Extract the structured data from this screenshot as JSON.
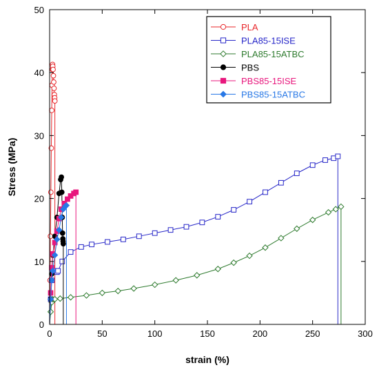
{
  "chart_data": {
    "type": "line",
    "title": "",
    "xlabel": "strain (%)",
    "ylabel": "Stress (MPa)",
    "xlim": [
      0,
      300
    ],
    "ylim": [
      0,
      50
    ],
    "xticks": [
      0,
      50,
      100,
      150,
      200,
      250,
      300
    ],
    "yticks": [
      0,
      10,
      20,
      30,
      40,
      50
    ],
    "grid": false,
    "legend_position": "top-right",
    "series": [
      {
        "name": "PLA",
        "color": "#e8262a",
        "marker": "circle-open",
        "points": [
          [
            0,
            0
          ],
          [
            0.4,
            7
          ],
          [
            0.8,
            14
          ],
          [
            1.2,
            21
          ],
          [
            1.6,
            28
          ],
          [
            2.0,
            34
          ],
          [
            2.3,
            38
          ],
          [
            2.6,
            40.5
          ],
          [
            2.8,
            41.3
          ],
          [
            3.0,
            41.0
          ],
          [
            3.3,
            40.5
          ],
          [
            3.6,
            39.5
          ],
          [
            3.9,
            38.5
          ],
          [
            4.2,
            37.5
          ],
          [
            4.5,
            36.5
          ],
          [
            4.8,
            36.0
          ],
          [
            5.0,
            35.5
          ]
        ],
        "drop_to": 5.0
      },
      {
        "name": "PLA85-15ISE",
        "color": "#2626c8",
        "marker": "square-open",
        "points": [
          [
            0,
            0
          ],
          [
            1,
            4
          ],
          [
            2,
            7
          ],
          [
            3,
            8.5
          ],
          [
            5,
            8.5
          ],
          [
            7,
            8.3
          ],
          [
            8,
            8.5
          ],
          [
            12,
            10
          ],
          [
            20,
            11.5
          ],
          [
            30,
            12.3
          ],
          [
            40,
            12.7
          ],
          [
            55,
            13.1
          ],
          [
            70,
            13.5
          ],
          [
            85,
            14.0
          ],
          [
            100,
            14.5
          ],
          [
            115,
            15.0
          ],
          [
            130,
            15.5
          ],
          [
            145,
            16.2
          ],
          [
            160,
            17.1
          ],
          [
            175,
            18.2
          ],
          [
            190,
            19.5
          ],
          [
            205,
            21.0
          ],
          [
            220,
            22.5
          ],
          [
            235,
            24.0
          ],
          [
            250,
            25.3
          ],
          [
            262,
            26.1
          ],
          [
            270,
            26.4
          ],
          [
            274,
            26.7
          ]
        ],
        "drop_to": 274
      },
      {
        "name": "PLA85-15ATBC",
        "color": "#2d7a2d",
        "marker": "diamond-open",
        "points": [
          [
            0,
            0
          ],
          [
            1,
            2
          ],
          [
            2,
            3.5
          ],
          [
            3,
            4.0
          ],
          [
            5,
            4.0
          ],
          [
            10,
            4.1
          ],
          [
            20,
            4.3
          ],
          [
            35,
            4.6
          ],
          [
            50,
            5.0
          ],
          [
            65,
            5.3
          ],
          [
            80,
            5.7
          ],
          [
            100,
            6.3
          ],
          [
            120,
            7.0
          ],
          [
            140,
            7.8
          ],
          [
            160,
            8.8
          ],
          [
            175,
            9.8
          ],
          [
            190,
            10.9
          ],
          [
            205,
            12.2
          ],
          [
            220,
            13.7
          ],
          [
            235,
            15.2
          ],
          [
            250,
            16.6
          ],
          [
            265,
            17.8
          ],
          [
            272,
            18.3
          ],
          [
            277,
            18.7
          ]
        ],
        "drop_to": 277
      },
      {
        "name": "PBS",
        "color": "#000000",
        "marker": "circle-filled",
        "points": [
          [
            0,
            0
          ],
          [
            1,
            4
          ],
          [
            2,
            8
          ],
          [
            3,
            11
          ],
          [
            5,
            14
          ],
          [
            7,
            17
          ],
          [
            9,
            20.8
          ],
          [
            10.5,
            23
          ],
          [
            11.2,
            23.4
          ],
          [
            11.6,
            21
          ],
          [
            12.0,
            17
          ],
          [
            12.3,
            14.5
          ],
          [
            12.6,
            13.6
          ],
          [
            12.8,
            13.2
          ],
          [
            13.0,
            12.8
          ]
        ],
        "drop_to": 13.0
      },
      {
        "name": "PBS85-15ISE",
        "color": "#e8177d",
        "marker": "square-filled",
        "points": [
          [
            0,
            0
          ],
          [
            1,
            5
          ],
          [
            2,
            9
          ],
          [
            3,
            11.2
          ],
          [
            5,
            13
          ],
          [
            7,
            14.8
          ],
          [
            9,
            16.8
          ],
          [
            11,
            18.3
          ],
          [
            14,
            19.2
          ],
          [
            17,
            19.9
          ],
          [
            20,
            20.4
          ],
          [
            23,
            20.8
          ],
          [
            25,
            21.0
          ]
        ],
        "drop_to": 25
      },
      {
        "name": "PBS85-15ATBC",
        "color": "#2878e6",
        "marker": "diamond-filled",
        "points": [
          [
            0,
            0
          ],
          [
            1,
            4
          ],
          [
            2,
            7
          ],
          [
            3,
            8.5
          ],
          [
            5,
            11
          ],
          [
            7,
            13.5
          ],
          [
            9,
            15.0
          ],
          [
            11,
            17
          ],
          [
            13,
            18.3
          ],
          [
            15,
            18.8
          ],
          [
            16,
            18.9
          ]
        ],
        "drop_to": 16
      }
    ]
  }
}
